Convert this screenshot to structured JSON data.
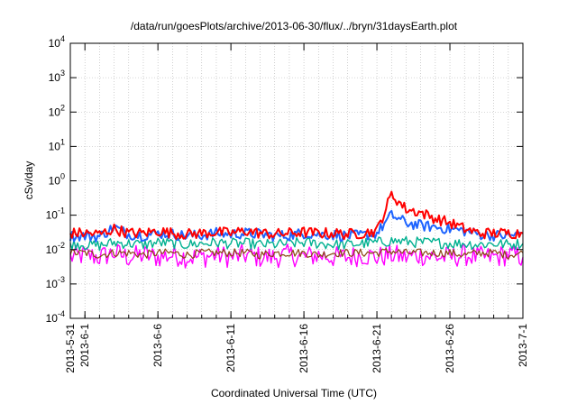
{
  "chart_data": {
    "type": "line",
    "title": "/data/run/goesPlots/archive/2013-06-30/flux/../bryn/31daysEarth.plot",
    "xlabel": "Coordinated Universal Time (UTC)",
    "ylabel": "cSv/day",
    "yscale": "log",
    "ylim": [
      0.0001,
      10000
    ],
    "xlim": [
      "2013-05-31",
      "2013-07-01"
    ],
    "grid": true,
    "legend": "none",
    "x_ticks": [
      "2013-5-31",
      "2013-6-1",
      "2013-6-6",
      "2013-6-11",
      "2013-6-16",
      "2013-6-21",
      "2013-6-26",
      "2013-7-1"
    ],
    "y_ticks": [
      {
        "value": 0.0001,
        "base": "10",
        "exp": "-4"
      },
      {
        "value": 0.001,
        "base": "10",
        "exp": "-3"
      },
      {
        "value": 0.01,
        "base": "10",
        "exp": "-2"
      },
      {
        "value": 0.1,
        "base": "10",
        "exp": "-1"
      },
      {
        "value": 1,
        "base": "10",
        "exp": "0"
      },
      {
        "value": 10,
        "base": "10",
        "exp": "1"
      },
      {
        "value": 100,
        "base": "10",
        "exp": "2"
      },
      {
        "value": 1000,
        "base": "10",
        "exp": "3"
      },
      {
        "value": 10000,
        "base": "10",
        "exp": "4"
      }
    ],
    "x": [
      "2013-5-31",
      "2013-6-1",
      "2013-6-2",
      "2013-6-3",
      "2013-6-4",
      "2013-6-5",
      "2013-6-6",
      "2013-6-7",
      "2013-6-8",
      "2013-6-9",
      "2013-6-10",
      "2013-6-11",
      "2013-6-12",
      "2013-6-13",
      "2013-6-14",
      "2013-6-15",
      "2013-6-16",
      "2013-6-17",
      "2013-6-18",
      "2013-6-19",
      "2013-6-20",
      "2013-6-21",
      "2013-6-22",
      "2013-6-23",
      "2013-6-24",
      "2013-6-25",
      "2013-6-26",
      "2013-6-27",
      "2013-6-28",
      "2013-6-29",
      "2013-6-30",
      "2013-7-1"
    ],
    "series": [
      {
        "color": "#ff0000",
        "values": [
          0.03,
          0.03,
          0.028,
          0.04,
          0.03,
          0.03,
          0.035,
          0.03,
          0.028,
          0.03,
          0.032,
          0.03,
          0.035,
          0.03,
          0.028,
          0.03,
          0.032,
          0.03,
          0.03,
          0.028,
          0.03,
          0.035,
          0.4,
          0.15,
          0.12,
          0.08,
          0.06,
          0.04,
          0.03,
          0.03,
          0.03,
          0.03
        ]
      },
      {
        "color": "#1e64ff",
        "values": [
          0.025,
          0.025,
          0.024,
          0.045,
          0.028,
          0.026,
          0.03,
          0.028,
          0.025,
          0.026,
          0.03,
          0.028,
          0.03,
          0.028,
          0.025,
          0.026,
          0.03,
          0.028,
          0.027,
          0.025,
          0.026,
          0.03,
          0.1,
          0.06,
          0.05,
          0.045,
          0.04,
          0.035,
          0.028,
          0.026,
          0.025,
          0.03
        ]
      },
      {
        "color": "#00b090",
        "values": [
          0.015,
          0.014,
          0.013,
          0.016,
          0.015,
          0.014,
          0.016,
          0.015,
          0.014,
          0.015,
          0.016,
          0.015,
          0.015,
          0.014,
          0.014,
          0.015,
          0.016,
          0.015,
          0.014,
          0.014,
          0.015,
          0.016,
          0.018,
          0.017,
          0.016,
          0.016,
          0.015,
          0.015,
          0.014,
          0.015,
          0.014,
          0.015
        ]
      },
      {
        "color": "#8b4513",
        "values": [
          0.008,
          0.008,
          0.007,
          0.008,
          0.008,
          0.007,
          0.008,
          0.008,
          0.007,
          0.008,
          0.008,
          0.008,
          0.008,
          0.007,
          0.008,
          0.008,
          0.008,
          0.007,
          0.008,
          0.008,
          0.008,
          0.008,
          0.009,
          0.008,
          0.008,
          0.008,
          0.008,
          0.007,
          0.008,
          0.008,
          0.007,
          0.008
        ]
      },
      {
        "color": "#ff00ff",
        "values": [
          0.006,
          0.007,
          0.006,
          0.008,
          0.006,
          0.007,
          0.006,
          0.007,
          0.006,
          0.006,
          0.007,
          0.006,
          0.007,
          0.006,
          0.006,
          0.007,
          0.006,
          0.007,
          0.006,
          0.006,
          0.007,
          0.006,
          0.007,
          0.006,
          0.007,
          0.006,
          0.006,
          0.007,
          0.006,
          0.006,
          0.007,
          0.006
        ]
      }
    ]
  }
}
